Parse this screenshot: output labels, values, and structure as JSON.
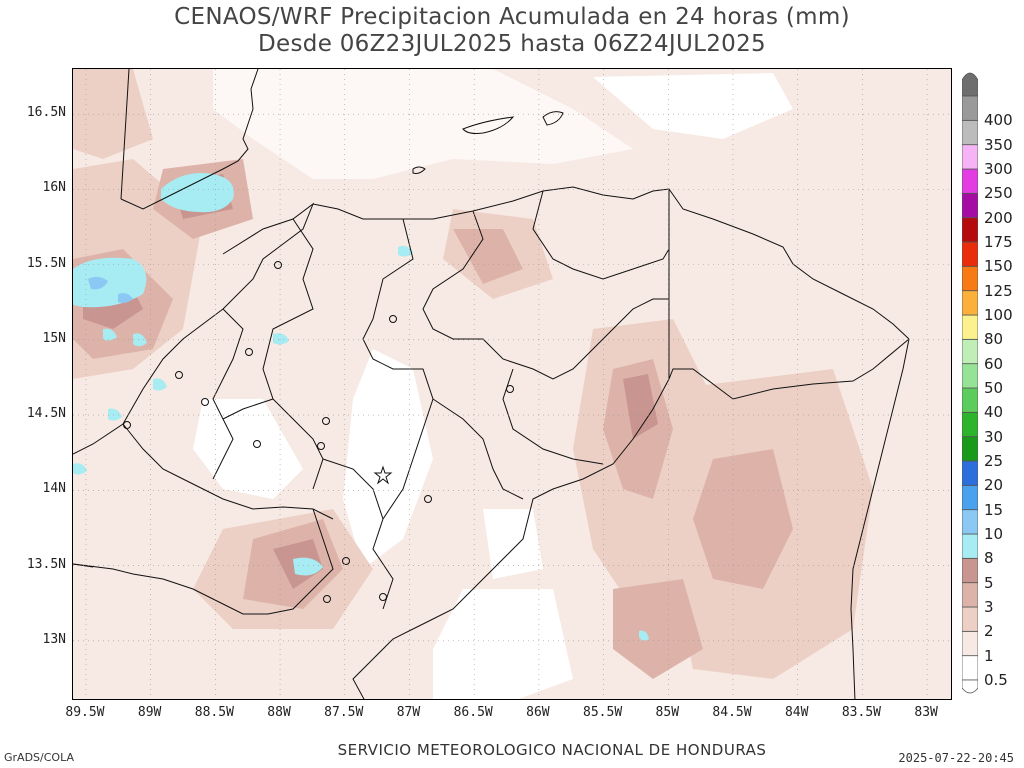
{
  "title_line1": "CENAOS/WRF Precipitacion Acumulada en 24 horas (mm)",
  "title_line2": "Desde 06Z23JUL2025 hasta 06Z24JUL2025",
  "footer": {
    "left": "GrADS/COLA",
    "center": "SERVICIO METEOROLOGICO NACIONAL DE HONDURAS",
    "right": "2025-07-22-20:45"
  },
  "map": {
    "lon_range": [
      -89.6,
      -82.8
    ],
    "lat_range": [
      12.6,
      16.8
    ],
    "lat_ticks": [
      {
        "value": 16.5,
        "label": "16.5N"
      },
      {
        "value": 16.0,
        "label": "16N"
      },
      {
        "value": 15.5,
        "label": "15.5N"
      },
      {
        "value": 15.0,
        "label": "15N"
      },
      {
        "value": 14.5,
        "label": "14.5N"
      },
      {
        "value": 14.0,
        "label": "14N"
      },
      {
        "value": 13.5,
        "label": "13.5N"
      },
      {
        "value": 13.0,
        "label": "13N"
      }
    ],
    "lon_ticks": [
      {
        "value": -89.5,
        "label": "89.5W"
      },
      {
        "value": -89.0,
        "label": "89W"
      },
      {
        "value": -88.5,
        "label": "88.5W"
      },
      {
        "value": -88.0,
        "label": "88W"
      },
      {
        "value": -87.5,
        "label": "87.5W"
      },
      {
        "value": -87.0,
        "label": "87W"
      },
      {
        "value": -86.5,
        "label": "86.5W"
      },
      {
        "value": -86.0,
        "label": "86W"
      },
      {
        "value": -85.5,
        "label": "85.5W"
      },
      {
        "value": -85.0,
        "label": "85W"
      },
      {
        "value": -84.5,
        "label": "84.5W"
      },
      {
        "value": -84.0,
        "label": "84W"
      },
      {
        "value": -83.5,
        "label": "83.5W"
      },
      {
        "value": -83.0,
        "label": "83W"
      }
    ],
    "capital_marker": "star"
  },
  "colorbar": {
    "levels": [
      {
        "label": "0.5",
        "color": "#ffffff"
      },
      {
        "label": "1",
        "color": "#f7e9e3"
      },
      {
        "label": "2",
        "color": "#ecd0c6"
      },
      {
        "label": "3",
        "color": "#ddb3a9"
      },
      {
        "label": "5",
        "color": "#c89590"
      },
      {
        "label": "8",
        "color": "#a6ecf2"
      },
      {
        "label": "10",
        "color": "#8cc8f4"
      },
      {
        "label": "15",
        "color": "#4aa2ee"
      },
      {
        "label": "20",
        "color": "#2c6fdc"
      },
      {
        "label": "25",
        "color": "#1a9a1a"
      },
      {
        "label": "30",
        "color": "#2cb42c"
      },
      {
        "label": "40",
        "color": "#5ccd5c"
      },
      {
        "label": "50",
        "color": "#96e296"
      },
      {
        "label": "60",
        "color": "#bfeeb6"
      },
      {
        "label": "80",
        "color": "#fbf28e"
      },
      {
        "label": "100",
        "color": "#fbb03c"
      },
      {
        "label": "125",
        "color": "#f77a14"
      },
      {
        "label": "150",
        "color": "#e82c0c"
      },
      {
        "label": "175",
        "color": "#b40c0c"
      },
      {
        "label": "200",
        "color": "#a40ca4"
      },
      {
        "label": "250",
        "color": "#e23ce2"
      },
      {
        "label": "300",
        "color": "#f6b4f6"
      },
      {
        "label": "350",
        "color": "#bcbcbc"
      },
      {
        "label": "400",
        "color": "#9a9a9a"
      }
    ],
    "overflow_color": "#6e6e6e"
  }
}
